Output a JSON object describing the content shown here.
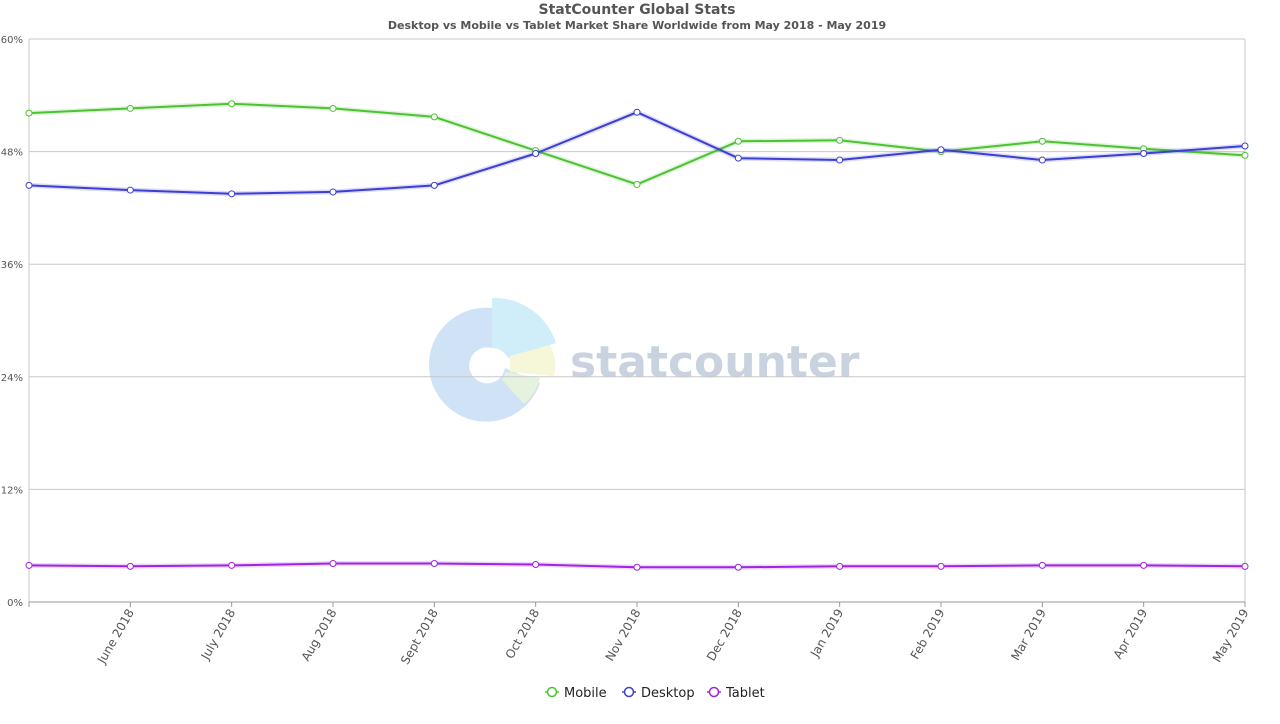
{
  "chart_data": {
    "type": "line",
    "title": "StatCounter Global Stats",
    "subtitle": "Desktop vs Mobile vs Tablet Market Share Worldwide from May 2018 - May 2019",
    "watermark_text": "statcounter",
    "x_categories": [
      "May 2018",
      "June 2018",
      "July 2018",
      "Aug 2018",
      "Sept 2018",
      "Oct 2018",
      "Nov 2018",
      "Dec 2018",
      "Jan 2019",
      "Feb 2019",
      "Mar 2019",
      "Apr 2019",
      "May 2019"
    ],
    "x_tick_labels": [
      "",
      "June 2018",
      "July 2018",
      "Aug 2018",
      "Sept 2018",
      "Oct 2018",
      "Nov 2018",
      "Dec 2018",
      "Jan 2019",
      "Feb 2019",
      "Mar 2019",
      "Apr 2019",
      "May 2019"
    ],
    "y_ticks": [
      0,
      12,
      24,
      36,
      48,
      60
    ],
    "y_tick_labels": [
      "0%",
      "12%",
      "24%",
      "36%",
      "48%",
      "60%"
    ],
    "ylim": [
      0,
      60
    ],
    "grid": true,
    "legend_position": "bottom-center",
    "series": [
      {
        "name": "Mobile",
        "color": "#4dc233",
        "values": [
          52.1,
          52.6,
          53.1,
          52.6,
          51.7,
          48.1,
          44.5,
          49.1,
          49.2,
          48.0,
          49.1,
          48.3,
          47.6
        ]
      },
      {
        "name": "Desktop",
        "color": "#3c3fd2",
        "values": [
          44.4,
          43.9,
          43.5,
          43.7,
          44.4,
          47.8,
          52.2,
          47.3,
          47.1,
          48.2,
          47.1,
          47.8,
          48.6
        ]
      },
      {
        "name": "Tablet",
        "color": "#a024e0",
        "values": [
          3.9,
          3.8,
          3.9,
          4.1,
          4.1,
          4.0,
          3.7,
          3.7,
          3.8,
          3.8,
          3.9,
          3.9,
          3.8
        ]
      }
    ]
  }
}
